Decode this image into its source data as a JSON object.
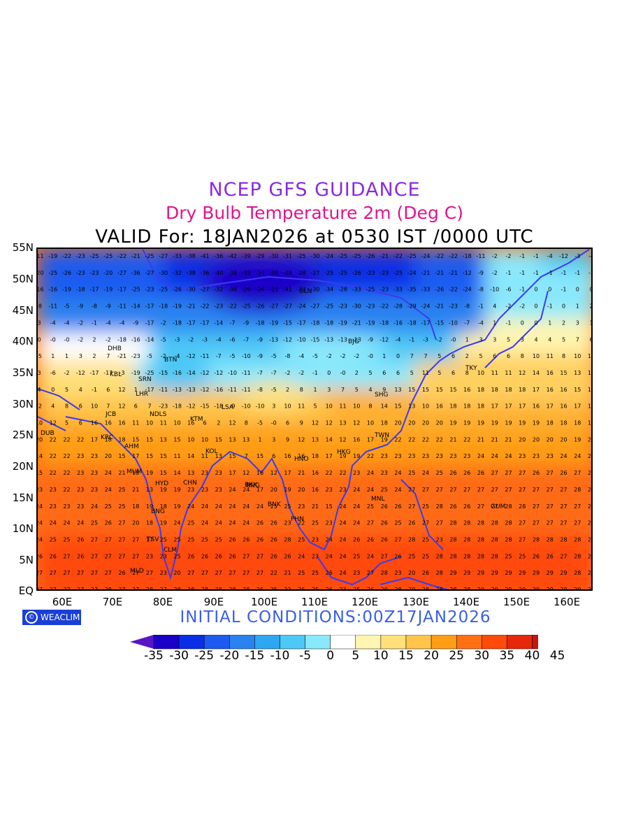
{
  "title": {
    "line1": "NCEP GFS GUIDANCE",
    "line2": "Dry Bulb Temperature 2m (Deg C)",
    "line3": "VALID For: 18JAN2026 at 0530 IST /0000 UTC"
  },
  "initial_conditions": "INITIAL CONDITIONS:00Z17JAN2026",
  "logo": {
    "text": "WEACLIM",
    "icon": "copyright-circle-icon"
  },
  "axes": {
    "lat_labels": [
      "55N",
      "50N",
      "45N",
      "40N",
      "35N",
      "30N",
      "25N",
      "20N",
      "15N",
      "10N",
      "5N",
      "EQ"
    ],
    "lon_labels": [
      "60E",
      "70E",
      "80E",
      "90E",
      "100E",
      "110E",
      "120E",
      "130E",
      "140E",
      "150E",
      "160E"
    ],
    "lon_range": [
      55,
      165
    ],
    "lat_range": [
      0,
      55
    ]
  },
  "colorbar": {
    "labels": [
      "-35",
      "-30",
      "-25",
      "-20",
      "-15",
      "-10",
      "-5",
      "0",
      "5",
      "10",
      "15",
      "20",
      "25",
      "30",
      "35",
      "40",
      "45"
    ],
    "colors": [
      "#1a00c8",
      "#0a2ee6",
      "#1e5af0",
      "#2a82f0",
      "#2ea6f2",
      "#4ec8f6",
      "#8ae8fc",
      "#ffffff",
      "#fff5b0",
      "#ffe07a",
      "#ffc44a",
      "#ff9e14",
      "#ff7014",
      "#ff4a0a",
      "#e6280a",
      "#c8140a",
      "#9e0a0a"
    ],
    "under_color": "#5a14c8",
    "over_color": "#000000"
  },
  "stations": [
    "DHB",
    "KBL",
    "SRN",
    "LHR",
    "JCB",
    "NDLS",
    "KTM",
    "AHM",
    "MUM",
    "KOL",
    "HYD",
    "BNG",
    "CHN",
    "CLM",
    "TSV",
    "MLD",
    "DUB",
    "KRC",
    "BKK",
    "HNO",
    "HKG",
    "TWN",
    "SHG",
    "BJG",
    "TKY",
    "MNL",
    "PHN",
    "GUM",
    "ULN",
    "BTN",
    "LSA",
    "RNG",
    "BNK"
  ],
  "grid_values": [
    [
      "-11",
      "-19",
      "-22",
      "-23",
      "-25",
      "-25",
      "-22",
      "-21",
      "-25",
      "-27",
      "-33",
      "-38",
      "-41",
      "-36",
      "-42",
      "-39",
      "-29",
      "-30",
      "-31",
      "-25",
      "-30",
      "-24",
      "-25",
      "-25",
      "-26",
      "-21",
      "-22",
      "-25",
      "-24",
      "-22",
      "-22",
      "-18",
      "-11",
      "-2",
      "-2",
      "-1",
      "-1",
      "-4",
      "-12",
      "-3",
      "-4"
    ],
    [
      "-20",
      "-25",
      "-26",
      "-23",
      "-23",
      "-20",
      "-27",
      "-36",
      "-27",
      "-30",
      "-32",
      "-38",
      "-36",
      "-40",
      "-38",
      "-33",
      "-34",
      "-38",
      "-29",
      "-28",
      "-27",
      "-25",
      "-25",
      "-26",
      "-23",
      "-23",
      "-25",
      "-24",
      "-21",
      "-21",
      "-21",
      "-12",
      "-9",
      "-2",
      "-1",
      "-1",
      "-1",
      "-1",
      "-1",
      "-1",
      "-1"
    ],
    [
      "-16",
      "-16",
      "-19",
      "-18",
      "-17",
      "-19",
      "-17",
      "-25",
      "-23",
      "-25",
      "-26",
      "-30",
      "-27",
      "-32",
      "-38",
      "-26",
      "-24",
      "-23",
      "-41",
      "-33",
      "-30",
      "-34",
      "-28",
      "-33",
      "-25",
      "-23",
      "-33",
      "-35",
      "-33",
      "-26",
      "-22",
      "-24",
      "-8",
      "-10",
      "-6",
      "-1",
      "0",
      "0",
      "-1",
      "0",
      "0"
    ],
    [
      "-8",
      "-11",
      "-5",
      "-9",
      "-8",
      "-9",
      "-11",
      "-14",
      "-17",
      "-18",
      "-19",
      "-21",
      "-22",
      "-23",
      "-22",
      "-25",
      "-26",
      "-27",
      "-27",
      "-24",
      "-27",
      "-25",
      "-23",
      "-30",
      "-23",
      "-22",
      "-28",
      "-29",
      "-24",
      "-21",
      "-23",
      "-8",
      "-1",
      "4",
      "-2",
      "-2",
      "0",
      "-1",
      "0",
      "1",
      "2"
    ],
    [
      "3",
      "-4",
      "-4",
      "-2",
      "-1",
      "-4",
      "-4",
      "-9",
      "-17",
      "-2",
      "-18",
      "-17",
      "-17",
      "-14",
      "-7",
      "-9",
      "-18",
      "-19",
      "-15",
      "-17",
      "-18",
      "-18",
      "-19",
      "-21",
      "-19",
      "-18",
      "-16",
      "-18",
      "-17",
      "-15",
      "-10",
      "-7",
      "-4",
      "1",
      "-1",
      "0",
      "0",
      "1",
      "2",
      "3",
      "1"
    ],
    [
      "0",
      "-0",
      "-0",
      "-2",
      "2",
      "-2",
      "-18",
      "-16",
      "-14",
      "-5",
      "-3",
      "-2",
      "-3",
      "-4",
      "-6",
      "-7",
      "-9",
      "-13",
      "-12",
      "-10",
      "-15",
      "-13",
      "-13",
      "-13",
      "-9",
      "-12",
      "-4",
      "-1",
      "-3",
      "-2",
      "-0",
      "1",
      "3",
      "3",
      "5",
      "3",
      "4",
      "4",
      "5",
      "7",
      "6"
    ],
    [
      "-5",
      "1",
      "1",
      "3",
      "2",
      "7",
      "-21",
      "-23",
      "-5",
      "-2",
      "-4",
      "-12",
      "-11",
      "-7",
      "-5",
      "-10",
      "-9",
      "-5",
      "-8",
      "-4",
      "-5",
      "-2",
      "-2",
      "-2",
      "-0",
      "1",
      "0",
      "7",
      "7",
      "5",
      "6",
      "2",
      "5",
      "6",
      "6",
      "8",
      "10",
      "11",
      "8",
      "10",
      "11"
    ],
    [
      "3",
      "-6",
      "-2",
      "-12",
      "-17",
      "-17",
      "-3",
      "-19",
      "-25",
      "-15",
      "-16",
      "-14",
      "-12",
      "-12",
      "-10",
      "-11",
      "-7",
      "-7",
      "-2",
      "-2",
      "-1",
      "0",
      "-0",
      "2",
      "5",
      "6",
      "6",
      "5",
      "11",
      "5",
      "6",
      "8",
      "10",
      "11",
      "11",
      "12",
      "14",
      "16",
      "15",
      "13",
      "13"
    ],
    [
      "4",
      "0",
      "5",
      "4",
      "-1",
      "6",
      "12",
      "1",
      "-17",
      "-11",
      "-13",
      "-13",
      "-12",
      "-16",
      "-11",
      "-11",
      "-8",
      "-5",
      "2",
      "8",
      "1",
      "3",
      "7",
      "5",
      "4",
      "9",
      "13",
      "15",
      "15",
      "15",
      "15",
      "16",
      "18",
      "18",
      "18",
      "18",
      "17",
      "16",
      "16",
      "15",
      "16"
    ],
    [
      "-2",
      "4",
      "8",
      "6",
      "10",
      "7",
      "12",
      "6",
      "7",
      "-23",
      "-18",
      "-12",
      "-15",
      "-18",
      "-9",
      "-10",
      "-10",
      "3",
      "10",
      "11",
      "5",
      "10",
      "11",
      "10",
      "8",
      "14",
      "15",
      "13",
      "10",
      "16",
      "18",
      "18",
      "18",
      "17",
      "17",
      "17",
      "16",
      "17",
      "16",
      "17",
      "17"
    ],
    [
      "10",
      "12",
      "5",
      "6",
      "16",
      "16",
      "16",
      "11",
      "10",
      "11",
      "10",
      "16",
      "6",
      "2",
      "12",
      "8",
      "-5",
      "-0",
      "6",
      "9",
      "12",
      "12",
      "13",
      "12",
      "10",
      "18",
      "20",
      "20",
      "20",
      "20",
      "19",
      "19",
      "19",
      "19",
      "19",
      "19",
      "19",
      "18",
      "18",
      "18",
      "18"
    ],
    [
      "20",
      "22",
      "22",
      "22",
      "17",
      "18",
      "18",
      "15",
      "15",
      "13",
      "15",
      "10",
      "10",
      "15",
      "13",
      "13",
      "1",
      "3",
      "9",
      "12",
      "13",
      "14",
      "12",
      "16",
      "17",
      "19",
      "22",
      "22",
      "22",
      "22",
      "21",
      "22",
      "21",
      "21",
      "21",
      "20",
      "20",
      "20",
      "20",
      "19",
      "21"
    ],
    [
      "14",
      "22",
      "22",
      "23",
      "23",
      "20",
      "15",
      "17",
      "15",
      "15",
      "11",
      "14",
      "11",
      "13",
      "15",
      "7",
      "15",
      "6",
      "16",
      "16",
      "18",
      "17",
      "19",
      "19",
      "22",
      "23",
      "23",
      "23",
      "23",
      "23",
      "23",
      "23",
      "24",
      "24",
      "24",
      "23",
      "23",
      "23",
      "24",
      "24",
      "23"
    ],
    [
      "15",
      "22",
      "22",
      "23",
      "23",
      "24",
      "21",
      "18",
      "19",
      "15",
      "14",
      "13",
      "23",
      "23",
      "17",
      "12",
      "16",
      "12",
      "17",
      "21",
      "16",
      "22",
      "22",
      "23",
      "24",
      "23",
      "24",
      "25",
      "24",
      "25",
      "26",
      "26",
      "26",
      "27",
      "27",
      "27",
      "26",
      "27",
      "26",
      "27",
      "27"
    ],
    [
      "23",
      "23",
      "22",
      "23",
      "23",
      "24",
      "25",
      "21",
      "13",
      "19",
      "19",
      "23",
      "23",
      "23",
      "24",
      "24",
      "17",
      "20",
      "19",
      "20",
      "16",
      "23",
      "23",
      "24",
      "24",
      "25",
      "24",
      "27",
      "27",
      "27",
      "27",
      "27",
      "27",
      "27",
      "27",
      "27",
      "27",
      "27",
      "27",
      "28",
      "26"
    ],
    [
      "24",
      "23",
      "23",
      "23",
      "24",
      "25",
      "25",
      "18",
      "19",
      "18",
      "19",
      "24",
      "24",
      "24",
      "24",
      "24",
      "24",
      "25",
      "25",
      "23",
      "21",
      "15",
      "24",
      "24",
      "25",
      "26",
      "26",
      "27",
      "25",
      "28",
      "26",
      "26",
      "27",
      "27",
      "28",
      "28",
      "27",
      "27",
      "27",
      "27",
      "28"
    ],
    [
      "24",
      "24",
      "24",
      "24",
      "25",
      "26",
      "27",
      "20",
      "18",
      "19",
      "24",
      "25",
      "24",
      "24",
      "24",
      "24",
      "26",
      "26",
      "23",
      "22",
      "25",
      "23",
      "24",
      "24",
      "27",
      "26",
      "25",
      "26",
      "27",
      "27",
      "28",
      "28",
      "28",
      "28",
      "28",
      "27",
      "27",
      "27",
      "27",
      "27",
      "27"
    ],
    [
      "24",
      "25",
      "25",
      "26",
      "27",
      "27",
      "27",
      "27",
      "17",
      "25",
      "25",
      "25",
      "25",
      "25",
      "26",
      "26",
      "26",
      "26",
      "28",
      "25",
      "23",
      "24",
      "24",
      "26",
      "26",
      "26",
      "27",
      "28",
      "25",
      "23",
      "28",
      "28",
      "28",
      "28",
      "28",
      "27",
      "28",
      "28",
      "28",
      "28",
      "28"
    ],
    [
      "26",
      "26",
      "27",
      "26",
      "27",
      "27",
      "27",
      "27",
      "23",
      "23",
      "25",
      "26",
      "26",
      "26",
      "26",
      "27",
      "27",
      "26",
      "26",
      "24",
      "23",
      "24",
      "24",
      "25",
      "24",
      "27",
      "26",
      "25",
      "25",
      "28",
      "28",
      "28",
      "28",
      "28",
      "25",
      "25",
      "26",
      "26",
      "27",
      "28",
      "28"
    ],
    [
      "27",
      "27",
      "27",
      "27",
      "27",
      "27",
      "26",
      "27",
      "27",
      "23",
      "20",
      "27",
      "27",
      "27",
      "27",
      "27",
      "27",
      "22",
      "21",
      "25",
      "25",
      "26",
      "24",
      "23",
      "27",
      "28",
      "23",
      "20",
      "26",
      "28",
      "29",
      "29",
      "29",
      "29",
      "29",
      "29",
      "29",
      "29",
      "29",
      "28",
      "28"
    ],
    [
      "27",
      "27",
      "27",
      "27",
      "27",
      "28",
      "27",
      "27",
      "28",
      "27",
      "28",
      "28",
      "28",
      "28",
      "28",
      "28",
      "26",
      "25",
      "22",
      "26",
      "25",
      "26",
      "23",
      "25",
      "26",
      "29",
      "28",
      "29",
      "28",
      "28",
      "28",
      "28",
      "29",
      "29",
      "29",
      "29",
      "29",
      "29",
      "29",
      "29",
      "29"
    ]
  ]
}
